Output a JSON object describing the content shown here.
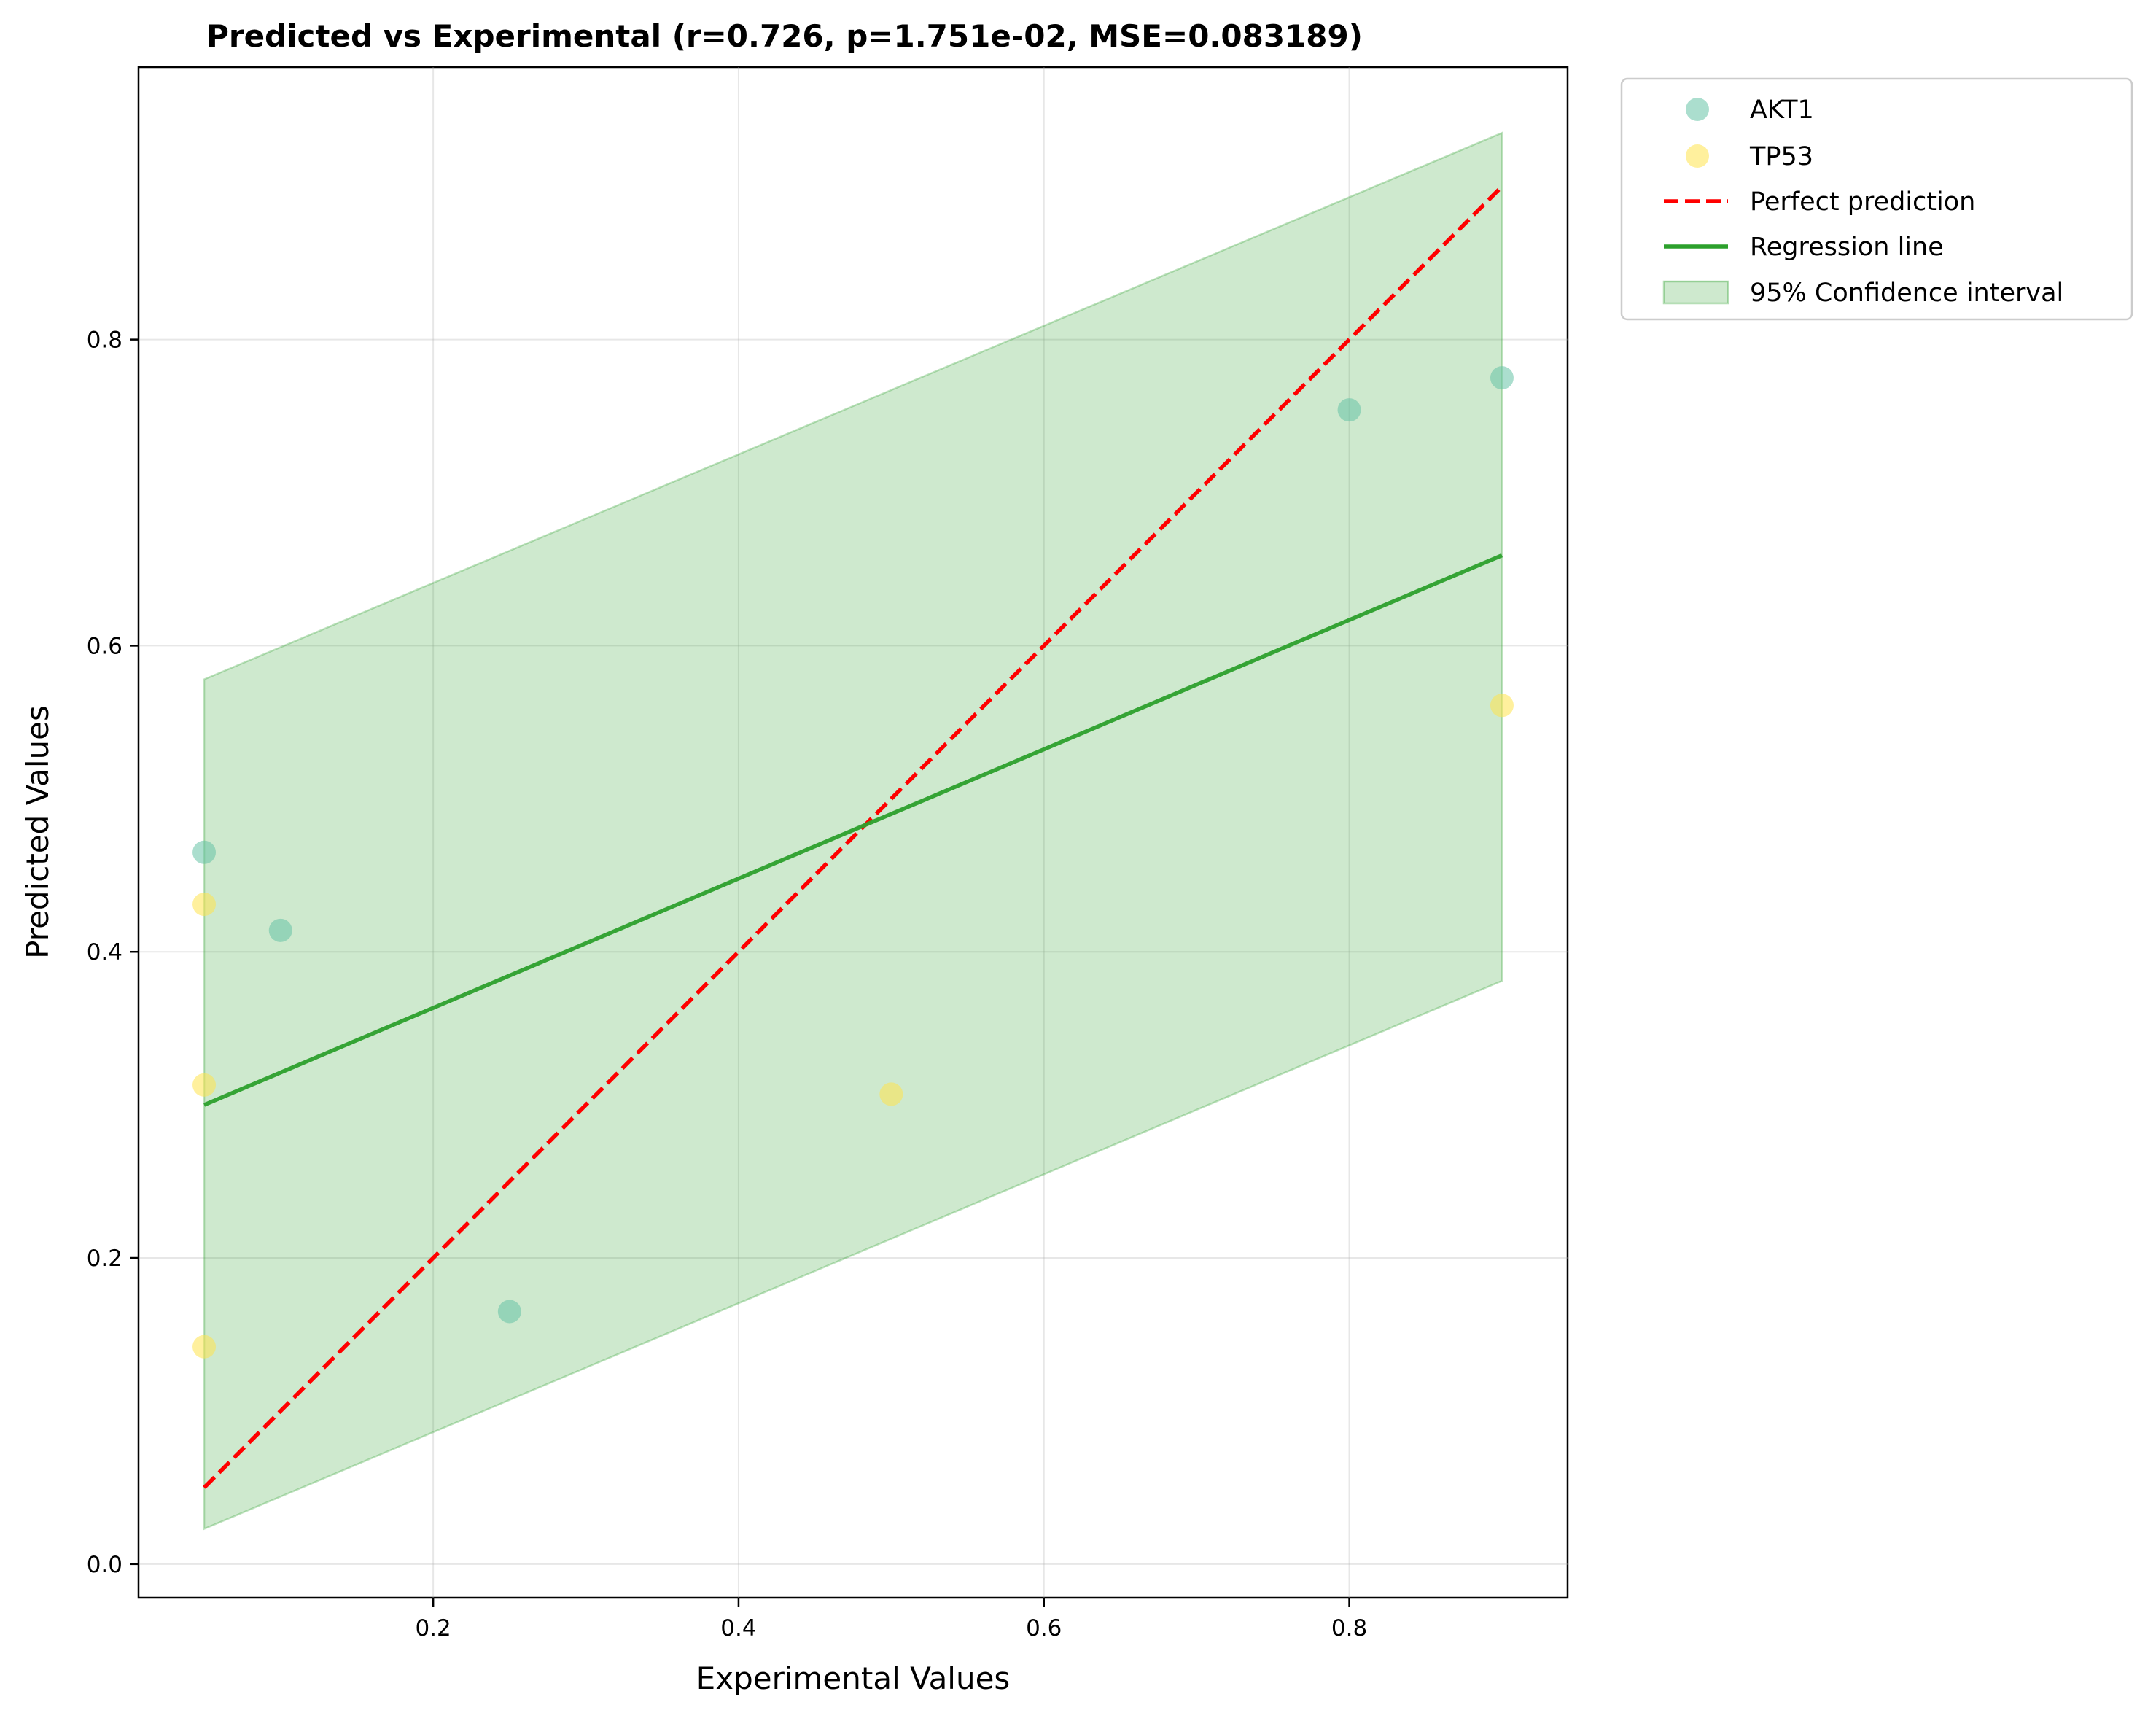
{
  "chart_data": {
    "type": "scatter",
    "title": "Predicted vs Experimental (r=0.726, p=1.751e-02, MSE=0.083189)",
    "xlabel": "Experimental Values",
    "ylabel": "Predicted Values",
    "xlim": [
      0.007,
      0.943
    ],
    "ylim": [
      -0.022,
      0.978
    ],
    "xticks": [
      0.2,
      0.4,
      0.6,
      0.8
    ],
    "yticks": [
      0.0,
      0.2,
      0.4,
      0.6,
      0.8
    ],
    "xtick_labels": [
      "0.2",
      "0.4",
      "0.6",
      "0.8"
    ],
    "ytick_labels": [
      "0.0",
      "0.2",
      "0.4",
      "0.6",
      "0.8"
    ],
    "grid": true,
    "legend_position": "outside-top-right",
    "series": [
      {
        "name": "AKT1",
        "kind": "scatter",
        "color": "#66c2a5",
        "points": [
          {
            "x": 0.05,
            "y": 0.465
          },
          {
            "x": 0.1,
            "y": 0.414
          },
          {
            "x": 0.25,
            "y": 0.165
          },
          {
            "x": 0.8,
            "y": 0.754
          },
          {
            "x": 0.9,
            "y": 0.775
          }
        ]
      },
      {
        "name": "TP53",
        "kind": "scatter",
        "color": "#ffe34d",
        "points": [
          {
            "x": 0.05,
            "y": 0.431
          },
          {
            "x": 0.05,
            "y": 0.313
          },
          {
            "x": 0.05,
            "y": 0.142
          },
          {
            "x": 0.5,
            "y": 0.307
          },
          {
            "x": 0.9,
            "y": 0.561
          }
        ]
      }
    ],
    "lines": [
      {
        "name": "Perfect prediction",
        "style": "dashed",
        "color": "#ff0000",
        "x": [
          0.05,
          0.9
        ],
        "y": [
          0.05,
          0.9
        ]
      },
      {
        "name": "Regression line",
        "style": "solid",
        "color": "#2ca02c",
        "x": [
          0.05,
          0.9
        ],
        "y": [
          0.3,
          0.659
        ]
      }
    ],
    "band": {
      "name": "95% Confidence interval",
      "color": "#2ca02c",
      "x": [
        0.05,
        0.9
      ],
      "upper": [
        0.578,
        0.935
      ],
      "lower": [
        0.023,
        0.381
      ]
    },
    "legend": [
      "AKT1",
      "TP53",
      "Perfect prediction",
      "Regression line",
      "95% Confidence interval"
    ]
  }
}
